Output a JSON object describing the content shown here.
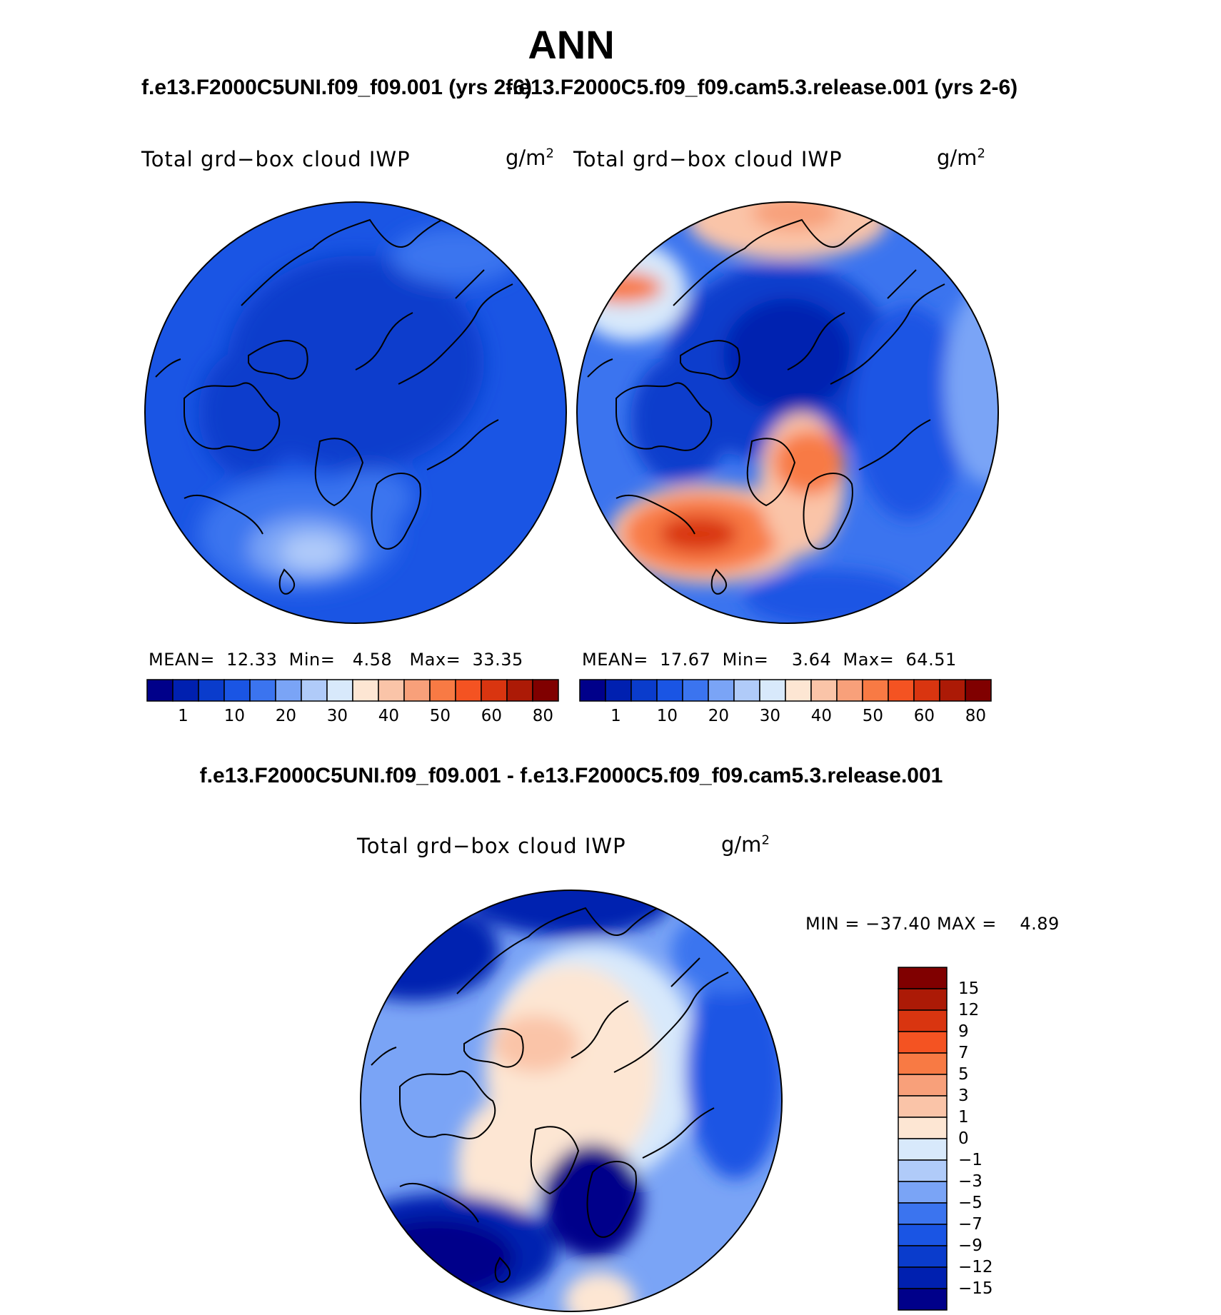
{
  "figure": {
    "season": "ANN",
    "variable_label": "Total grd−box cloud IWP",
    "units_base": "g/m",
    "units_exp": "2"
  },
  "colors": {
    "abs_scale": [
      "#00008a",
      "#0020b0",
      "#0a3ccc",
      "#1a55e4",
      "#3b74ef",
      "#7aa4f6",
      "#b0cbf9",
      "#d8e9fb",
      "#fde6d3",
      "#fac4a8",
      "#f8a07a",
      "#f87a44",
      "#f45322",
      "#d93510",
      "#ac1a06",
      "#800000"
    ],
    "diff_scale": [
      "#00008a",
      "#0020b0",
      "#0a3ccc",
      "#1a55e4",
      "#3b74ef",
      "#7aa4f6",
      "#b0cbf9",
      "#d8e9fb",
      "#fde6d3",
      "#fac4a8",
      "#f8a07a",
      "#f87a44",
      "#f45322",
      "#d93510",
      "#ac1a06",
      "#800000"
    ]
  },
  "chart_data": [
    {
      "type": "contour-map",
      "projection": "north polar stereographic",
      "title": "f.e13.F2000C5UNI.f09_f09.001 (yrs 2-6)",
      "title_visible": "f.e13.F2000C5UNI.f09_f09.001 (yrs 2-6)",
      "stats": {
        "mean_label": "MEAN=",
        "mean": "12.33",
        "min_label": "Min=",
        "min": "4.58",
        "max_label": "Max=",
        "max": "33.35"
      },
      "colorbar_ticks": [
        "1",
        "10",
        "20",
        "30",
        "40",
        "50",
        "60",
        "80"
      ]
    },
    {
      "type": "contour-map",
      "projection": "north polar stereographic",
      "title": "f.e13.F2000C5.f09_f09.cam5.3.release.001 (yrs 2-6)",
      "stats": {
        "mean_label": "MEAN=",
        "mean": "17.67",
        "min_label": "Min=",
        "min": "3.64",
        "max_label": "Max=",
        "max": "64.51"
      },
      "colorbar_ticks": [
        "1",
        "10",
        "20",
        "30",
        "40",
        "50",
        "60",
        "80"
      ]
    },
    {
      "type": "contour-map",
      "projection": "north polar stereographic",
      "title": "f.e13.F2000C5UNI.f09_f09.001 - f.e13.F2000C5.f09_f09.cam5.3.release.001",
      "stats_text": "MIN = −37.40 MAX =    4.89",
      "colorbar_ticks": [
        "15",
        "12",
        "9",
        "7",
        "5",
        "3",
        "1",
        "0",
        "−1",
        "−3",
        "−5",
        "−7",
        "−9",
        "−12",
        "−15"
      ]
    }
  ]
}
